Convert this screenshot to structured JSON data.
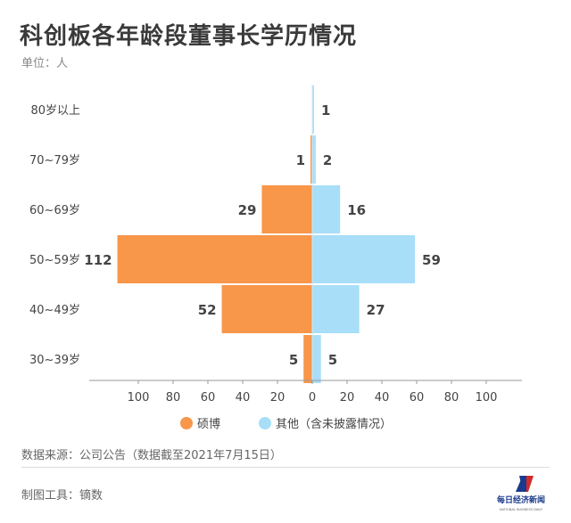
{
  "page": {
    "title": "科创板各年龄段董事长学历情况",
    "unit": "单位：人",
    "source": "数据来源：公司公告（数据截至2021年7月15日）",
    "tool": "制图工具：镝数",
    "logo_text": "每日经济新闻",
    "logo_subtext": "NATIONAL BUSINESS DAILY"
  },
  "chart_data": {
    "type": "bar",
    "orientation": "horizontal-butterfly",
    "categories": [
      "80岁以上",
      "70~79岁",
      "60~69岁",
      "50~59岁",
      "40~49岁",
      "30~39岁"
    ],
    "series": [
      {
        "name": "硕博",
        "side": "left",
        "color": "#F8964A",
        "values": [
          0,
          1,
          29,
          112,
          52,
          5
        ],
        "labels": [
          "",
          "1",
          "29",
          "112",
          "52",
          "5"
        ]
      },
      {
        "name": "其他（含未披露情况）",
        "side": "right",
        "color": "#A8DEF8",
        "values": [
          1,
          2,
          16,
          59,
          27,
          5
        ],
        "labels": [
          "1",
          "2",
          "16",
          "59",
          "27",
          "5"
        ]
      }
    ],
    "xlim": [
      -120,
      120
    ],
    "x_ticks": [
      "100",
      "80",
      "60",
      "40",
      "20",
      "0",
      "20",
      "40",
      "60",
      "80",
      "100"
    ],
    "grid": false,
    "legend_position": "bottom-center"
  }
}
